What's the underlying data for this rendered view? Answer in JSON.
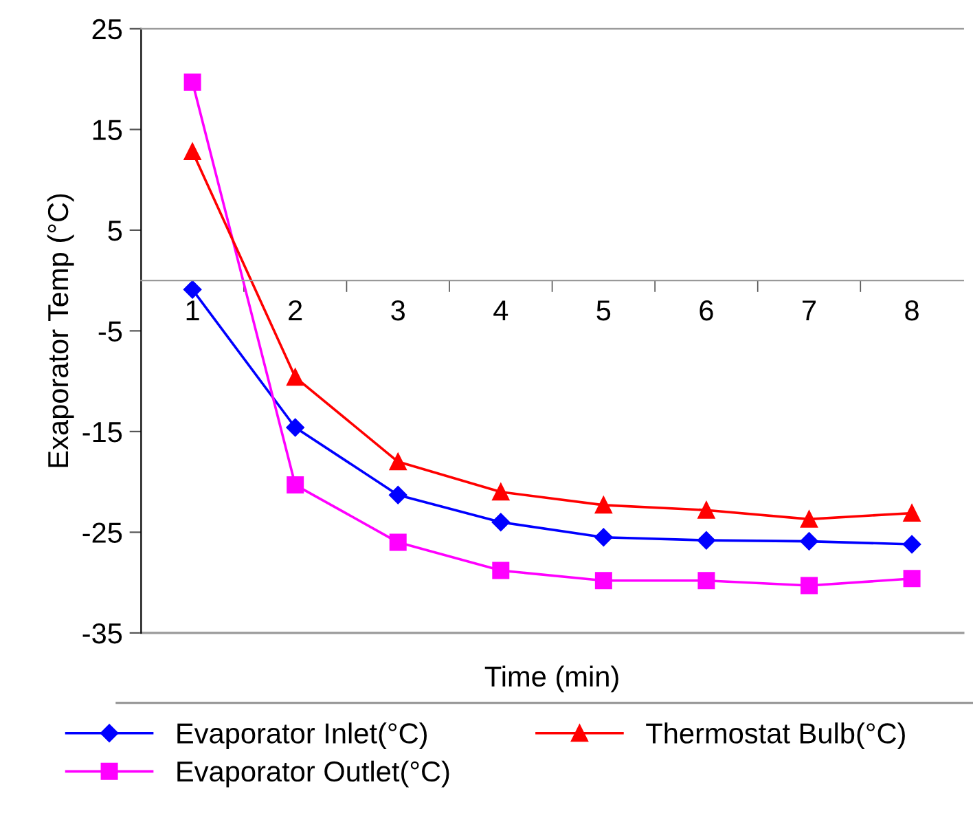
{
  "chart_data": {
    "type": "line",
    "xlabel": "Time (min)",
    "ylabel": "Exaporator Temp (°C)",
    "categories": [
      "1",
      "2",
      "3",
      "4",
      "5",
      "6",
      "7",
      "8"
    ],
    "series": [
      {
        "name": "Evaporator Inlet(°C)",
        "color": "#0000ff",
        "marker": "diamond",
        "values": [
          -0.9,
          -14.6,
          -21.3,
          -24.0,
          -25.5,
          -25.8,
          -25.9,
          -26.2
        ]
      },
      {
        "name": "Evaporator Outlet(°C)",
        "color": "#ff00ff",
        "marker": "square",
        "values": [
          19.7,
          -20.3,
          -26.0,
          -28.8,
          -29.8,
          -29.8,
          -30.3,
          -29.6
        ]
      },
      {
        "name": "Thermostat Bulb(°C)",
        "color": "#ff0000",
        "marker": "triangle",
        "values": [
          12.8,
          -9.6,
          -18.0,
          -21.0,
          -22.3,
          -22.8,
          -23.7,
          -23.1
        ]
      }
    ],
    "ylim": [
      -35,
      25
    ],
    "yticks": [
      -35,
      -25,
      -15,
      -5,
      5,
      15,
      25
    ],
    "grid": false,
    "legend": "bottom",
    "line_style": "solid"
  }
}
